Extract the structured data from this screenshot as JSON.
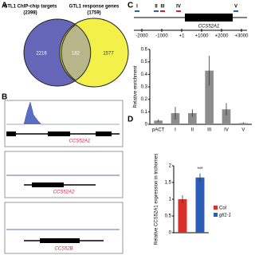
{
  "panels": {
    "a": "A",
    "b": "B",
    "c": "C",
    "d": "D"
  },
  "venn": {
    "left_label": "GTL1 ChIP-chip targets",
    "left_count": "(2398)",
    "right_label": "GTL1 response genes",
    "right_count": "(1759)",
    "left_only": "2216",
    "overlap": "182",
    "right_only": "1577"
  },
  "browser": {
    "genes": [
      "CCS52A1",
      "CCS52A2",
      "CCS52B"
    ]
  },
  "gene_map": {
    "gene": "CCS52A1",
    "regions": [
      "I",
      "II",
      "III",
      "IV",
      "V"
    ],
    "positions": [
      "-2000",
      "-1000",
      "+1",
      "+1000",
      "+2000",
      "+3000"
    ]
  },
  "chart_data": [
    {
      "type": "bar",
      "y_label": "Relative enrichment",
      "categories": [
        "pACT",
        "I",
        "II",
        "III",
        "IV",
        "V"
      ],
      "values": [
        0.03,
        0.09,
        0.09,
        0.43,
        0.12,
        0.01
      ],
      "errors": [
        0.01,
        0.05,
        0.03,
        0.12,
        0.05,
        0.005
      ],
      "color": "#8c8c8c",
      "ylim": [
        0,
        0.6
      ],
      "yticks": [
        0,
        0.1,
        0.2,
        0.3,
        0.4,
        0.5,
        0.6
      ]
    },
    {
      "type": "bar",
      "y_label": "Relative CCS52A1 expression in trichomes",
      "categories": [
        "Col",
        "gtl1-1"
      ],
      "values": [
        1.0,
        1.65
      ],
      "errors": [
        0.12,
        0.12
      ],
      "colors": [
        "#d9302a",
        "#2b5cb8"
      ],
      "annotation": "***",
      "ylim": [
        0,
        2
      ],
      "yticks": [
        0,
        0.5,
        1,
        1.5,
        2
      ]
    }
  ]
}
